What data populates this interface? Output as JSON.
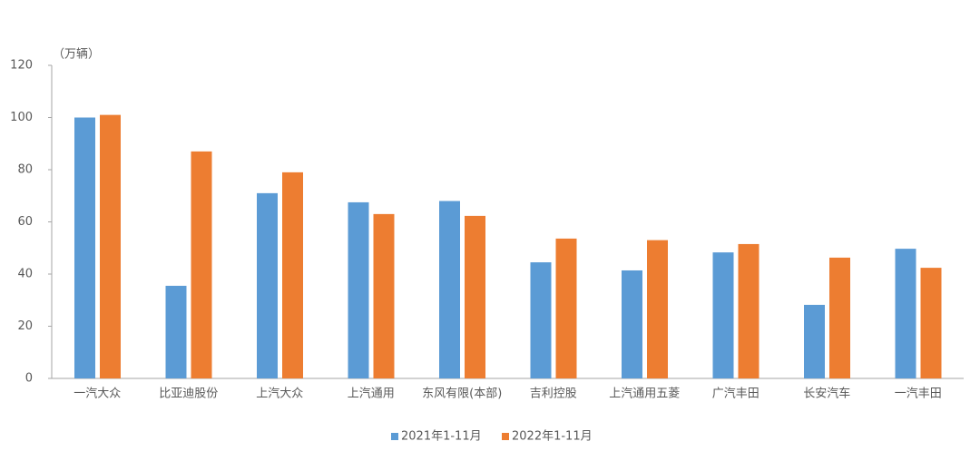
{
  "chart_data": {
    "type": "bar",
    "y_label": "（万辆）",
    "categories": [
      "一汽大众",
      "比亚迪股份",
      "上汽大众",
      "上汽通用",
      "东风有限(本部)",
      "吉利控股",
      "上汽通用五菱",
      "广汽丰田",
      "长安汽车",
      "一汽丰田"
    ],
    "series": [
      {
        "name": "2021年1-11月",
        "color": "#5b9bd5",
        "values": [
          100,
          35.5,
          71,
          67.5,
          68,
          44.5,
          41.4,
          48.3,
          28.2,
          49.7
        ]
      },
      {
        "name": "2022年1-11月",
        "color": "#ed7d31",
        "values": [
          101,
          87,
          79,
          63,
          62.3,
          53.6,
          53,
          51.5,
          46.3,
          42.4
        ]
      }
    ],
    "ylim": [
      0,
      120
    ],
    "yticks": [
      0,
      20,
      40,
      60,
      80,
      100,
      120
    ],
    "legend": "bottom"
  }
}
